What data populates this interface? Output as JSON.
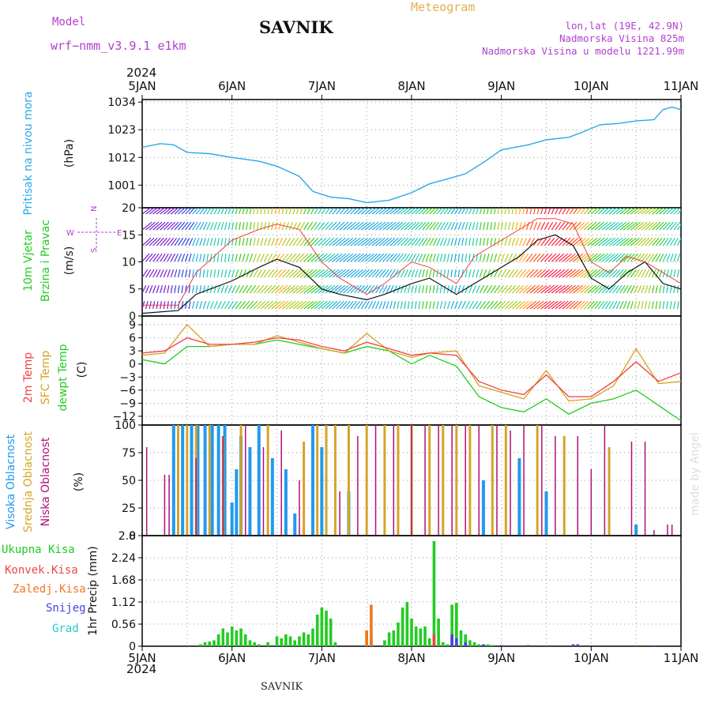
{
  "header": {
    "model_label": "Model",
    "model_name": "wrf−nmm_v3.9.1  e1km",
    "station": "SAVNIK",
    "product": "Meteogram",
    "lonlat": "lon,lat (19E, 42.9N)",
    "altitude": "Nadmorska Visina 825m",
    "model_altitude": "Nadmorska Visina u modelu 1221.99m",
    "year_top": "2024",
    "year_bottom": "2024",
    "footer_station": "SAVNIK",
    "credit": "made by Angel"
  },
  "colors": {
    "pressure": "#2aa8e8",
    "temp2m": "#f04040",
    "sfc_temp": "#d8a020",
    "dewpt": "#22cc22",
    "high_cloud": "#2299ee",
    "mid_cloud": "#d4a428",
    "low_cloud": "#b0107a",
    "total_precip": "#22cc22",
    "conv_precip": "#ee4444",
    "freezing": "#ee7722",
    "snow": "#4444dd",
    "hail": "#22cccc",
    "wind_dir_label": "#b040d0",
    "model_text": "#b040d0",
    "product_text": "#e0b050"
  },
  "chart_data": [
    {
      "type": "line",
      "panel": "pressure",
      "ylabel_lines": [
        "Pritisak na nivou mora",
        "(hPa)"
      ],
      "x_unit": "days since 5JAN 2024 00UTC",
      "x_ticks": [
        "5JAN",
        "6JAN",
        "7JAN",
        "8JAN",
        "9JAN",
        "10JAN",
        "11JAN"
      ],
      "y_ticks": [
        "1034",
        "1023",
        "1012",
        "1001"
      ],
      "ylim": [
        992,
        1035
      ],
      "series": [
        {
          "name": "Pritisak",
          "x": [
            0,
            0.2,
            0.35,
            0.5,
            0.75,
            1.0,
            1.3,
            1.5,
            1.75,
            1.9,
            2.1,
            2.3,
            2.5,
            2.75,
            3.0,
            3.2,
            3.4,
            3.6,
            3.8,
            4.0,
            4.3,
            4.5,
            4.75,
            4.9,
            5.1,
            5.3,
            5.5,
            5.7,
            5.8,
            5.9,
            6.0
          ],
          "y": [
            1016,
            1017.5,
            1017,
            1014,
            1013.5,
            1012,
            1010.5,
            1008.5,
            1004.5,
            998.5,
            996.2,
            995.6,
            994,
            995,
            998,
            1001.5,
            1003.5,
            1005.5,
            1010,
            1015,
            1017,
            1019,
            1020,
            1022,
            1025,
            1025.5,
            1026.5,
            1027,
            1031,
            1032,
            1031
          ]
        }
      ]
    },
    {
      "type": "line",
      "panel": "wind",
      "ylabel_lines": [
        "10m Vjetar",
        "Brzina i Pravac",
        "(m/s)"
      ],
      "compass_labels": [
        "N",
        "E",
        "W",
        "S"
      ],
      "y_ticks": [
        "20",
        "15",
        "10",
        "5",
        "0"
      ],
      "ylim": [
        0,
        20
      ],
      "series": [
        {
          "name": "Brzina",
          "x": [
            0,
            0.4,
            0.6,
            1.0,
            1.3,
            1.5,
            1.75,
            2.0,
            2.2,
            2.5,
            2.7,
            3.0,
            3.2,
            3.5,
            3.7,
            4.0,
            4.2,
            4.4,
            4.6,
            4.8,
            5.0,
            5.2,
            5.4,
            5.6,
            5.8,
            6.0
          ],
          "y": [
            0.5,
            1,
            4,
            6.5,
            9,
            10.5,
            9,
            5,
            4,
            3,
            4,
            6,
            7,
            4,
            6,
            9,
            11,
            14,
            15,
            13,
            7,
            5,
            8,
            10,
            6,
            5
          ]
        },
        {
          "name": "Udari",
          "x": [
            0,
            0.4,
            0.6,
            1.0,
            1.3,
            1.5,
            1.75,
            2.0,
            2.2,
            2.5,
            2.7,
            3.0,
            3.2,
            3.5,
            3.7,
            4.0,
            4.2,
            4.4,
            4.6,
            4.8,
            5.0,
            5.2,
            5.4,
            5.6,
            5.8,
            6.0
          ],
          "y": [
            2,
            2,
            8,
            14,
            16,
            17,
            16,
            10,
            7,
            4,
            6,
            10,
            9,
            6,
            11,
            14,
            16,
            18,
            18,
            17,
            10,
            8,
            11,
            10,
            8,
            6
          ]
        }
      ]
    },
    {
      "type": "line",
      "panel": "temperature",
      "ylabel_lines": [
        "2m Temp",
        "SFC Temp",
        "dewpt Temp",
        "(C)"
      ],
      "y_ticks": [
        "9",
        "6",
        "3",
        "0",
        "−3",
        "−6",
        "−9",
        "−12"
      ],
      "ylim": [
        -14,
        11
      ],
      "series": [
        {
          "name": "2m Temp",
          "x": [
            0,
            0.25,
            0.5,
            0.75,
            1.0,
            1.25,
            1.5,
            1.75,
            2.0,
            2.25,
            2.5,
            2.75,
            3.0,
            3.2,
            3.5,
            3.75,
            4.0,
            4.25,
            4.5,
            4.75,
            5.0,
            5.25,
            5.5,
            5.75,
            6.0
          ],
          "y": [
            2.5,
            3,
            6,
            4.5,
            4.5,
            5,
            6,
            5.5,
            4,
            3,
            5,
            3.5,
            2,
            2.5,
            2,
            -4,
            -6,
            -7,
            -2.5,
            -7.5,
            -7.5,
            -4,
            0.5,
            -4,
            -2
          ]
        },
        {
          "name": "SFC Temp",
          "x": [
            0,
            0.25,
            0.5,
            0.75,
            1.0,
            1.25,
            1.5,
            1.75,
            2.0,
            2.25,
            2.5,
            2.75,
            3.0,
            3.2,
            3.5,
            3.75,
            4.0,
            4.25,
            4.5,
            4.75,
            5.0,
            5.25,
            5.5,
            5.75,
            6.0
          ],
          "y": [
            2,
            2.5,
            9,
            4,
            4.5,
            4.5,
            6.5,
            5,
            3.5,
            2.5,
            7,
            3,
            1.5,
            2.5,
            3,
            -5,
            -6.5,
            -8,
            -1.5,
            -8.5,
            -8,
            -5,
            3.5,
            -4.5,
            -4
          ]
        },
        {
          "name": "dewpt Temp",
          "x": [
            0,
            0.25,
            0.5,
            0.75,
            1.0,
            1.25,
            1.5,
            1.75,
            2.0,
            2.25,
            2.5,
            2.75,
            3.0,
            3.2,
            3.5,
            3.75,
            4.0,
            4.25,
            4.5,
            4.75,
            5.0,
            5.25,
            5.5,
            5.75,
            6.0
          ],
          "y": [
            1,
            0,
            4,
            4,
            4.5,
            4.5,
            5.5,
            4.5,
            3.5,
            2.5,
            4,
            3,
            0,
            2,
            -0.5,
            -7.5,
            -10,
            -11,
            -8,
            -11.5,
            -9,
            -8,
            -6,
            -9.5,
            -13
          ]
        }
      ]
    },
    {
      "type": "bar",
      "panel": "clouds",
      "ylabel_lines": [
        "Visoka Oblacnost",
        "Srednja Oblacnost",
        "Niska Oblacnost",
        "(%)"
      ],
      "y_ticks": [
        "100",
        "75",
        "50",
        "25",
        "0"
      ],
      "ylim": [
        0,
        100
      ],
      "series": [
        {
          "name": "Visoka Oblacnost",
          "x": [
            0.35,
            0.45,
            0.55,
            0.62,
            0.7,
            0.78,
            0.85,
            0.92,
            1.0,
            1.05,
            1.1,
            1.2,
            1.3,
            1.45,
            1.6,
            1.7,
            1.9,
            2.0,
            2.3,
            3.8,
            4.2,
            4.5,
            5.5
          ],
          "y": [
            100,
            100,
            100,
            100,
            100,
            100,
            100,
            100,
            30,
            60,
            90,
            80,
            100,
            70,
            60,
            20,
            100,
            80,
            40,
            50,
            70,
            40,
            10
          ]
        },
        {
          "name": "Srednja Oblacnost",
          "x": [
            0.4,
            0.5,
            0.6,
            0.75,
            0.9,
            1.1,
            1.4,
            1.8,
            1.95,
            2.05,
            2.15,
            2.3,
            2.5,
            2.7,
            2.85,
            3.0,
            3.2,
            3.35,
            3.5,
            3.65,
            3.9,
            4.05,
            4.4,
            4.7,
            5.2
          ],
          "y": [
            100,
            100,
            100,
            100,
            90,
            100,
            100,
            85,
            100,
            100,
            100,
            100,
            100,
            100,
            100,
            100,
            100,
            100,
            100,
            100,
            100,
            100,
            100,
            90,
            80
          ]
        },
        {
          "name": "Niska Oblacnost",
          "x": [
            0.05,
            0.25,
            0.3,
            0.6,
            0.9,
            1.15,
            1.35,
            1.55,
            1.75,
            2.2,
            2.4,
            2.6,
            2.8,
            3.0,
            3.15,
            3.3,
            3.45,
            3.6,
            3.75,
            3.95,
            4.1,
            4.25,
            4.45,
            4.6,
            4.85,
            5.0,
            5.15,
            5.45,
            5.6,
            5.7,
            5.85,
            5.9
          ],
          "y": [
            80,
            55,
            55,
            70,
            90,
            100,
            80,
            95,
            50,
            40,
            90,
            100,
            100,
            100,
            100,
            100,
            100,
            100,
            100,
            100,
            95,
            100,
            100,
            90,
            90,
            60,
            100,
            85,
            85,
            5,
            10,
            10
          ]
        }
      ]
    },
    {
      "type": "bar",
      "panel": "precip",
      "ylabel_lines": [
        "1hr Precip (mm)"
      ],
      "legend": [
        "Ukupna Kisa",
        "Konvek.Kisa",
        "Zaledj.Kisa",
        "Snijeg",
        "Grad"
      ],
      "y_ticks": [
        "2.8",
        "2.24",
        "1.68",
        "1.12",
        "0.56",
        "0"
      ],
      "ylim": [
        0,
        2.8
      ],
      "x_ticks": [
        "5JAN",
        "6JAN",
        "7JAN",
        "8JAN",
        "9JAN",
        "10JAN",
        "11JAN"
      ],
      "series": [
        {
          "name": "Ukupna Kisa",
          "x": [
            0.65,
            0.7,
            0.75,
            0.8,
            0.85,
            0.9,
            0.95,
            1.0,
            1.05,
            1.1,
            1.15,
            1.2,
            1.25,
            1.3,
            1.4,
            1.5,
            1.55,
            1.6,
            1.65,
            1.7,
            1.75,
            1.8,
            1.85,
            1.9,
            1.95,
            2.0,
            2.05,
            2.1,
            2.15,
            2.5,
            2.55,
            2.7,
            2.75,
            2.8,
            2.85,
            2.9,
            2.95,
            3.0,
            3.05,
            3.1,
            3.15,
            3.2,
            3.25,
            3.3,
            3.35,
            3.4,
            3.45,
            3.5,
            3.55,
            3.6,
            3.65,
            3.7,
            3.75,
            3.8,
            3.85,
            3.9
          ],
          "y": [
            0.05,
            0.1,
            0.12,
            0.15,
            0.3,
            0.45,
            0.35,
            0.5,
            0.4,
            0.45,
            0.3,
            0.15,
            0.1,
            0.05,
            0.1,
            0.25,
            0.2,
            0.3,
            0.25,
            0.15,
            0.25,
            0.35,
            0.3,
            0.45,
            0.8,
            0.98,
            0.9,
            0.7,
            0.1,
            0.4,
            0.3,
            0.15,
            0.35,
            0.4,
            0.6,
            0.98,
            1.12,
            0.7,
            0.5,
            0.45,
            0.5,
            0.2,
            2.66,
            0.7,
            0.1,
            0.05,
            1.05,
            1.1,
            0.4,
            0.3,
            0.15,
            0.1,
            0.05,
            0.05,
            0.05,
            0.03
          ]
        },
        {
          "name": "Konvek.Kisa",
          "x": [
            2.55,
            3.25,
            3.45
          ],
          "y": [
            0.15,
            0.3,
            0.2
          ]
        },
        {
          "name": "Zaledj.Kisa",
          "x": [
            2.5,
            2.55
          ],
          "y": [
            0.4,
            1.05
          ]
        },
        {
          "name": "Snijeg",
          "x": [
            3.45,
            3.5,
            3.6,
            3.8,
            4.0,
            4.3,
            4.8,
            4.85,
            5.7
          ],
          "y": [
            0.3,
            0.2,
            0.1,
            0.05,
            0.03,
            0.03,
            0.05,
            0.05,
            0.02
          ]
        },
        {
          "name": "Grad",
          "x": [],
          "y": []
        }
      ]
    }
  ]
}
